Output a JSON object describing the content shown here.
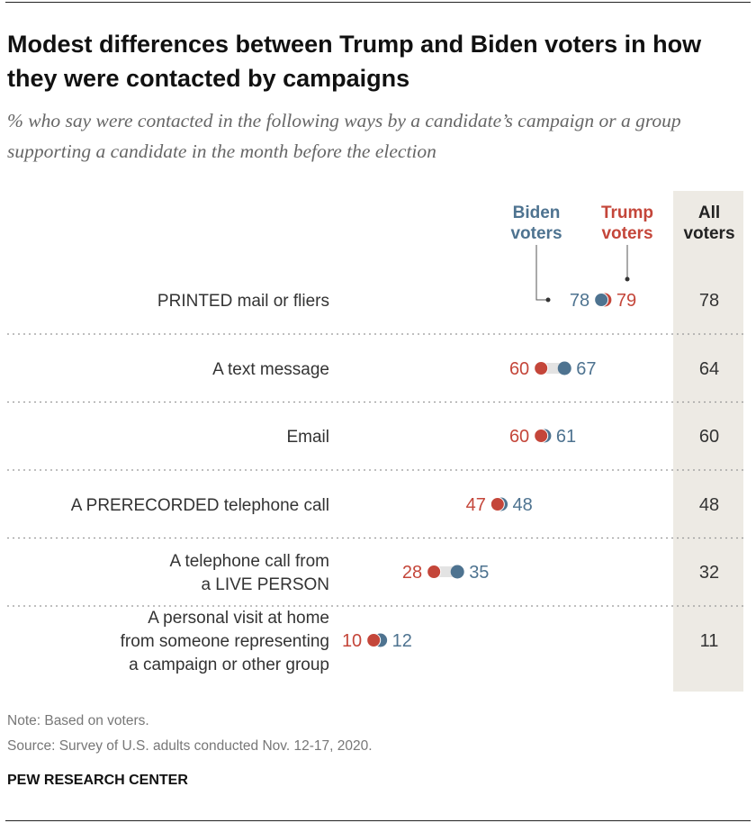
{
  "title": "Modest differences between Trump and Biden voters in how they were contacted by campaigns",
  "subtitle": "% who say were contacted in the following ways by a candidate’s campaign or a group supporting a candidate in the month before the election",
  "note": "Note: Based on voters.",
  "source": "Source: Survey of U.S. adults conducted Nov. 12-17, 2020.",
  "brand": "PEW RESEARCH CENTER",
  "colors": {
    "biden": "#4e7390",
    "trump": "#c4463a",
    "all_column": "#edeae4",
    "connector": "#e3e3e3"
  },
  "chart_data": {
    "type": "dot",
    "series": [
      {
        "name": "Biden voters",
        "name_lines": [
          "Biden",
          "voters"
        ],
        "values": [
          78,
          67,
          61,
          48,
          35,
          12
        ]
      },
      {
        "name": "Trump voters",
        "name_lines": [
          "Trump",
          "voters"
        ],
        "values": [
          79,
          60,
          60,
          47,
          28,
          10
        ]
      }
    ],
    "all_voters": {
      "name_lines": [
        "All",
        "voters"
      ],
      "values": [
        78,
        64,
        60,
        48,
        32,
        11
      ]
    },
    "categories": [
      [
        "PRINTED mail or fliers"
      ],
      [
        "A text message"
      ],
      [
        "Email"
      ],
      [
        "A PRERECORDED telephone call"
      ],
      [
        "A telephone call from",
        "a LIVE PERSON"
      ],
      [
        "A personal visit at home",
        "from someone representing",
        "a campaign or other group"
      ]
    ]
  }
}
